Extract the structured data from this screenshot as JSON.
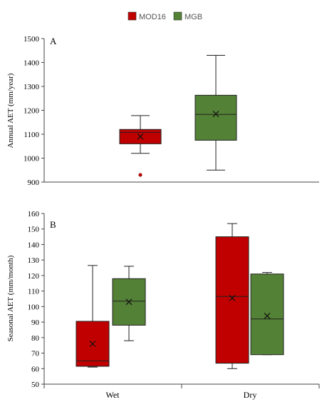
{
  "legend": {
    "items": [
      {
        "label": "MOD16",
        "color": "#c00000"
      },
      {
        "label": "MGB",
        "color": "#538135"
      }
    ]
  },
  "chart_data": [
    {
      "type": "box",
      "panel_label": "A",
      "ylabel": "Annual AET (mm/year)",
      "ylim": [
        900,
        1500
      ],
      "yticks": [
        900,
        1000,
        1100,
        1200,
        1300,
        1400,
        1500
      ],
      "categories": [],
      "grid": false,
      "boxes": [
        {
          "series": "MOD16",
          "min": 1020,
          "q1": 1060,
          "median": 1108,
          "q3": 1120,
          "max": 1178,
          "mean": 1090,
          "outliers": [
            930
          ]
        },
        {
          "series": "MGB",
          "min": 950,
          "q1": 1075,
          "median": 1183,
          "q3": 1263,
          "max": 1430,
          "mean": 1185,
          "outliers": []
        }
      ]
    },
    {
      "type": "box",
      "panel_label": "B",
      "ylabel": "Seasonal AET (mm/month)",
      "ylim": [
        50,
        160
      ],
      "yticks": [
        50,
        60,
        70,
        80,
        90,
        100,
        110,
        120,
        130,
        140,
        150,
        160
      ],
      "categories": [
        "Wet",
        "Dry"
      ],
      "grid": false,
      "boxes": [
        {
          "category": "Wet",
          "series": "MOD16",
          "min": 61,
          "q1": 61.5,
          "median": 65,
          "q3": 90.5,
          "max": 126.5,
          "mean": 76,
          "outliers": []
        },
        {
          "category": "Wet",
          "series": "MGB",
          "min": 78,
          "q1": 88,
          "median": 103.5,
          "q3": 118,
          "max": 126,
          "mean": 103,
          "outliers": []
        },
        {
          "category": "Dry",
          "series": "MOD16",
          "min": 60,
          "q1": 63.5,
          "median": 106.5,
          "q3": 145,
          "max": 153.5,
          "mean": 105.5,
          "outliers": []
        },
        {
          "category": "Dry",
          "series": "MGB",
          "min": 69,
          "q1": 69,
          "median": 92,
          "q3": 121,
          "max": 122,
          "mean": 94,
          "outliers": []
        }
      ]
    }
  ]
}
